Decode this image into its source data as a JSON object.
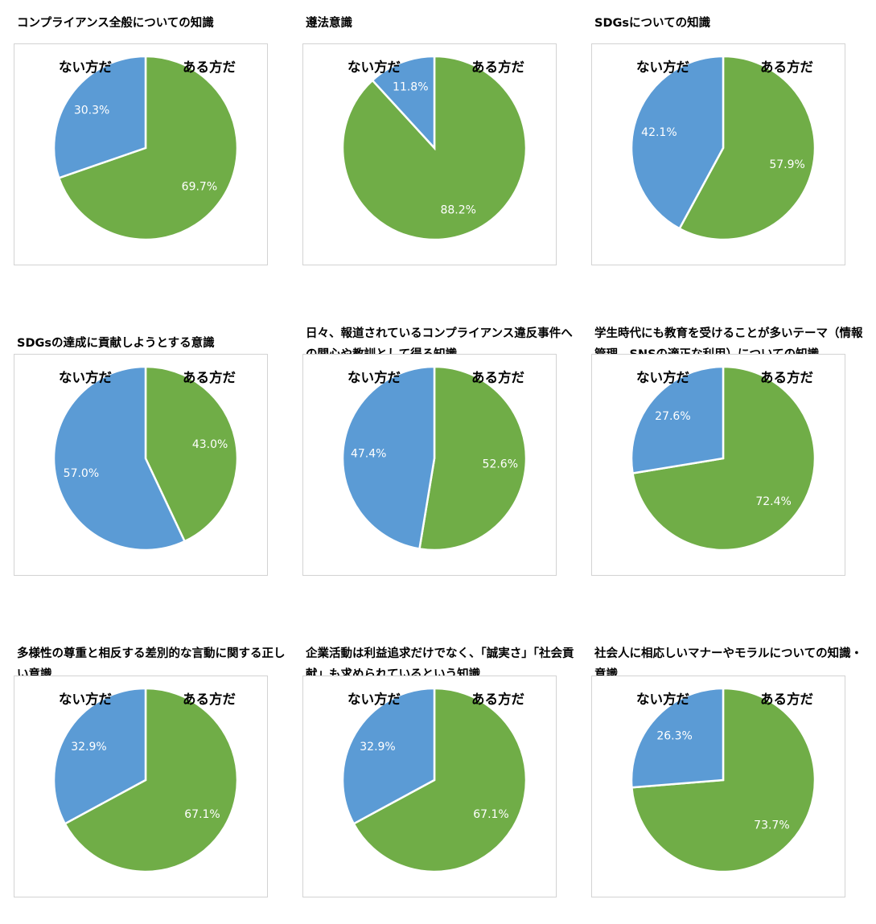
{
  "legend": {
    "no_label": "ない方だ",
    "yes_label": "ある方だ"
  },
  "colors": {
    "yes": "#70ad47",
    "no": "#5b9bd5"
  },
  "chart_data": [
    {
      "type": "pie",
      "title": "コンプライアンス全般についての知識",
      "categories": [
        "ある方だ",
        "ない方だ"
      ],
      "values": [
        69.7,
        30.3
      ],
      "labels": [
        "69.7%",
        "30.3%"
      ]
    },
    {
      "type": "pie",
      "title": "遵法意識",
      "categories": [
        "ある方だ",
        "ない方だ"
      ],
      "values": [
        88.2,
        11.8
      ],
      "labels": [
        "88.2%",
        "11.8%"
      ]
    },
    {
      "type": "pie",
      "title": "SDGsについての知識",
      "categories": [
        "ある方だ",
        "ない方だ"
      ],
      "values": [
        57.9,
        42.1
      ],
      "labels": [
        "57.9%",
        "42.1%"
      ]
    },
    {
      "type": "pie",
      "title": "SDGsの達成に貢献しようとする意識",
      "categories": [
        "ある方だ",
        "ない方だ"
      ],
      "values": [
        43.0,
        57.0
      ],
      "labels": [
        "43.0%",
        "57.0%"
      ]
    },
    {
      "type": "pie",
      "title": "日々、報道されているコンプライアンス違反事件への関心や教訓として得る知識",
      "categories": [
        "ある方だ",
        "ない方だ"
      ],
      "values": [
        52.6,
        47.4
      ],
      "labels": [
        "52.6%",
        "47.4%"
      ]
    },
    {
      "type": "pie",
      "title": "学生時代にも教育を受けることが多いテーマ（情報管理、SNSの適正な利用）についての知識",
      "categories": [
        "ある方だ",
        "ない方だ"
      ],
      "values": [
        72.4,
        27.6
      ],
      "labels": [
        "72.4%",
        "27.6%"
      ]
    },
    {
      "type": "pie",
      "title": "多様性の尊重と相反する差別的な言動に関する正しい意識",
      "categories": [
        "ある方だ",
        "ない方だ"
      ],
      "values": [
        67.1,
        32.9
      ],
      "labels": [
        "67.1%",
        "32.9%"
      ]
    },
    {
      "type": "pie",
      "title": "企業活動は利益追求だけでなく、「誠実さ」「社会貢献」も求められているという知識",
      "categories": [
        "ある方だ",
        "ない方だ"
      ],
      "values": [
        67.1,
        32.9
      ],
      "labels": [
        "67.1%",
        "32.9%"
      ]
    },
    {
      "type": "pie",
      "title": "社会人に相応しいマナーやモラルについての知識・意識",
      "categories": [
        "ある方だ",
        "ない方だ"
      ],
      "values": [
        73.7,
        26.3
      ],
      "labels": [
        "73.7%",
        "26.3%"
      ]
    }
  ]
}
